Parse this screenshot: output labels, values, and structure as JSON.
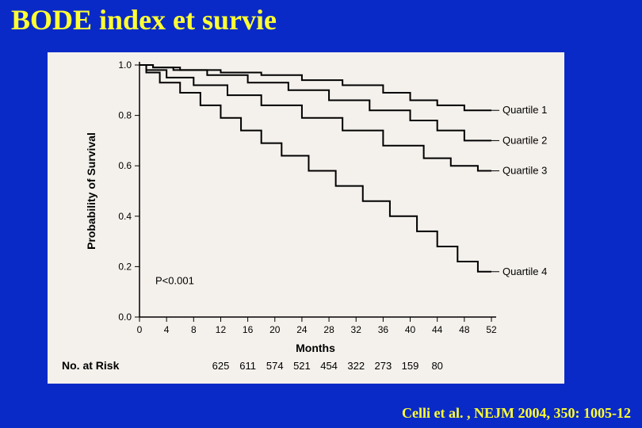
{
  "title": "BODE index et survie",
  "citation": "Celli et al. , NEJM 2004, 350: 1005-12",
  "background_color": "#0a2ac7",
  "accent_color": "#ffff33",
  "panel_color": "#f4f1ec",
  "chart": {
    "type": "kaplan-meier",
    "line_color": "#000000",
    "line_width": 2,
    "x_axis": {
      "label": "Months",
      "min": 0,
      "max": 52,
      "tick_step": 4,
      "label_fontsize": 14,
      "tick_fontsize": 12
    },
    "y_axis": {
      "label": "Probability of Survival",
      "min": 0.0,
      "max": 1.0,
      "tick_step": 0.2,
      "label_fontsize": 14,
      "tick_fontsize": 12
    },
    "p_value_text": "P<0.001",
    "series": [
      {
        "name": "Quartile 1",
        "label_end_y": 0.82,
        "points": [
          [
            0,
            1.0
          ],
          [
            2,
            1.0
          ],
          [
            2,
            0.99
          ],
          [
            6,
            0.99
          ],
          [
            6,
            0.98
          ],
          [
            12,
            0.98
          ],
          [
            12,
            0.97
          ],
          [
            18,
            0.97
          ],
          [
            18,
            0.96
          ],
          [
            24,
            0.96
          ],
          [
            24,
            0.94
          ],
          [
            30,
            0.94
          ],
          [
            30,
            0.92
          ],
          [
            36,
            0.92
          ],
          [
            36,
            0.89
          ],
          [
            40,
            0.89
          ],
          [
            40,
            0.86
          ],
          [
            44,
            0.86
          ],
          [
            44,
            0.84
          ],
          [
            48,
            0.84
          ],
          [
            48,
            0.82
          ],
          [
            52,
            0.82
          ]
        ]
      },
      {
        "name": "Quartile 2",
        "label_end_y": 0.7,
        "points": [
          [
            0,
            1.0
          ],
          [
            2,
            1.0
          ],
          [
            2,
            0.99
          ],
          [
            5,
            0.99
          ],
          [
            5,
            0.98
          ],
          [
            10,
            0.98
          ],
          [
            10,
            0.96
          ],
          [
            16,
            0.96
          ],
          [
            16,
            0.93
          ],
          [
            22,
            0.93
          ],
          [
            22,
            0.9
          ],
          [
            28,
            0.9
          ],
          [
            28,
            0.86
          ],
          [
            34,
            0.86
          ],
          [
            34,
            0.82
          ],
          [
            40,
            0.82
          ],
          [
            40,
            0.78
          ],
          [
            44,
            0.78
          ],
          [
            44,
            0.74
          ],
          [
            48,
            0.74
          ],
          [
            48,
            0.7
          ],
          [
            52,
            0.7
          ]
        ]
      },
      {
        "name": "Quartile 3",
        "label_end_y": 0.58,
        "points": [
          [
            0,
            1.0
          ],
          [
            1,
            1.0
          ],
          [
            1,
            0.98
          ],
          [
            4,
            0.98
          ],
          [
            4,
            0.95
          ],
          [
            8,
            0.95
          ],
          [
            8,
            0.92
          ],
          [
            13,
            0.92
          ],
          [
            13,
            0.88
          ],
          [
            18,
            0.88
          ],
          [
            18,
            0.84
          ],
          [
            24,
            0.84
          ],
          [
            24,
            0.79
          ],
          [
            30,
            0.79
          ],
          [
            30,
            0.74
          ],
          [
            36,
            0.74
          ],
          [
            36,
            0.68
          ],
          [
            42,
            0.68
          ],
          [
            42,
            0.63
          ],
          [
            46,
            0.63
          ],
          [
            46,
            0.6
          ],
          [
            50,
            0.6
          ],
          [
            50,
            0.58
          ],
          [
            52,
            0.58
          ]
        ]
      },
      {
        "name": "Quartile 4",
        "label_end_y": 0.18,
        "points": [
          [
            0,
            1.0
          ],
          [
            1,
            1.0
          ],
          [
            1,
            0.97
          ],
          [
            3,
            0.97
          ],
          [
            3,
            0.93
          ],
          [
            6,
            0.93
          ],
          [
            6,
            0.89
          ],
          [
            9,
            0.89
          ],
          [
            9,
            0.84
          ],
          [
            12,
            0.84
          ],
          [
            12,
            0.79
          ],
          [
            15,
            0.79
          ],
          [
            15,
            0.74
          ],
          [
            18,
            0.74
          ],
          [
            18,
            0.69
          ],
          [
            21,
            0.69
          ],
          [
            21,
            0.64
          ],
          [
            25,
            0.64
          ],
          [
            25,
            0.58
          ],
          [
            29,
            0.58
          ],
          [
            29,
            0.52
          ],
          [
            33,
            0.52
          ],
          [
            33,
            0.46
          ],
          [
            37,
            0.46
          ],
          [
            37,
            0.4
          ],
          [
            41,
            0.4
          ],
          [
            41,
            0.34
          ],
          [
            44,
            0.34
          ],
          [
            44,
            0.28
          ],
          [
            47,
            0.28
          ],
          [
            47,
            0.22
          ],
          [
            50,
            0.22
          ],
          [
            50,
            0.18
          ],
          [
            52,
            0.18
          ]
        ]
      }
    ],
    "no_at_risk": {
      "label": "No. at Risk",
      "x_positions": [
        12,
        16,
        20,
        24,
        28,
        32,
        36,
        40,
        44,
        48,
        52
      ],
      "values": [
        "625",
        "611",
        "574",
        "521",
        "454",
        "322",
        "273",
        "159",
        "80"
      ],
      "value_x": [
        12,
        16,
        20,
        24,
        28,
        32,
        36,
        40,
        44
      ]
    }
  }
}
